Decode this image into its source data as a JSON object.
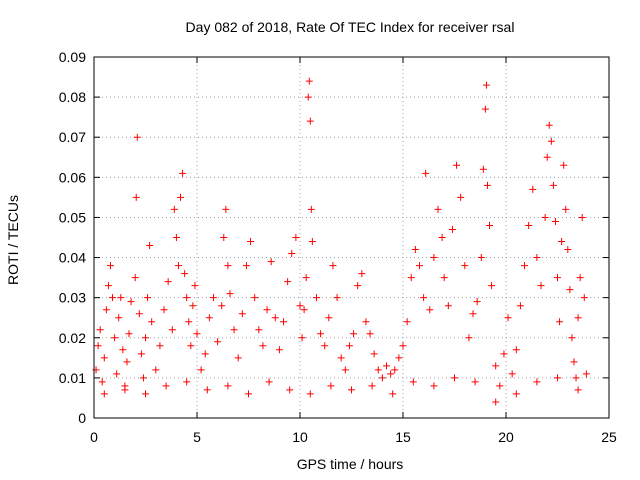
{
  "chart_data": {
    "type": "scatter",
    "title": "Day 082 of 2018, Rate Of TEC Index for receiver rsal",
    "xlabel": "GPS time / hours",
    "ylabel": "ROTI / TECUs",
    "xlim": [
      0,
      25
    ],
    "ylim": [
      0,
      0.09
    ],
    "x_ticks": [
      0,
      5,
      10,
      15,
      20,
      25
    ],
    "y_ticks": [
      0,
      0.01,
      0.02,
      0.03,
      0.04,
      0.05,
      0.06,
      0.07,
      0.08,
      0.09
    ],
    "x_tick_labels": [
      "0",
      "5",
      "10",
      "15",
      "20",
      "25"
    ],
    "y_tick_labels": [
      "0",
      "0.01",
      "0.02",
      "0.03",
      "0.04",
      "0.05",
      "0.06",
      "0.07",
      "0.08",
      "0.09"
    ],
    "grid": true,
    "marker": "plus",
    "color": "#ff0000",
    "series": [
      {
        "points": [
          [
            0.1,
            0.012
          ],
          [
            0.2,
            0.018
          ],
          [
            0.3,
            0.022
          ],
          [
            0.4,
            0.009
          ],
          [
            0.5,
            0.015
          ],
          [
            0.6,
            0.027
          ],
          [
            0.7,
            0.033
          ],
          [
            0.8,
            0.038
          ],
          [
            0.9,
            0.03
          ],
          [
            1.0,
            0.02
          ],
          [
            1.1,
            0.011
          ],
          [
            1.2,
            0.025
          ],
          [
            1.3,
            0.03
          ],
          [
            1.4,
            0.017
          ],
          [
            1.5,
            0.008
          ],
          [
            1.6,
            0.014
          ],
          [
            1.7,
            0.021
          ],
          [
            1.8,
            0.029
          ],
          [
            2.0,
            0.035
          ],
          [
            2.05,
            0.055
          ],
          [
            2.1,
            0.07
          ],
          [
            2.2,
            0.026
          ],
          [
            2.3,
            0.016
          ],
          [
            2.4,
            0.01
          ],
          [
            2.5,
            0.02
          ],
          [
            2.6,
            0.03
          ],
          [
            2.7,
            0.043
          ],
          [
            2.8,
            0.024
          ],
          [
            3.0,
            0.012
          ],
          [
            3.2,
            0.018
          ],
          [
            3.4,
            0.027
          ],
          [
            3.6,
            0.034
          ],
          [
            3.8,
            0.022
          ],
          [
            3.9,
            0.052
          ],
          [
            4.0,
            0.045
          ],
          [
            4.1,
            0.038
          ],
          [
            4.2,
            0.055
          ],
          [
            4.3,
            0.061
          ],
          [
            4.4,
            0.036
          ],
          [
            4.5,
            0.03
          ],
          [
            4.6,
            0.024
          ],
          [
            4.7,
            0.018
          ],
          [
            4.8,
            0.028
          ],
          [
            4.9,
            0.033
          ],
          [
            5.0,
            0.021
          ],
          [
            5.2,
            0.012
          ],
          [
            5.4,
            0.016
          ],
          [
            5.6,
            0.025
          ],
          [
            5.8,
            0.03
          ],
          [
            6.0,
            0.019
          ],
          [
            6.2,
            0.028
          ],
          [
            6.3,
            0.045
          ],
          [
            6.4,
            0.052
          ],
          [
            6.5,
            0.038
          ],
          [
            6.6,
            0.031
          ],
          [
            6.8,
            0.022
          ],
          [
            7.0,
            0.015
          ],
          [
            7.2,
            0.026
          ],
          [
            7.4,
            0.038
          ],
          [
            7.6,
            0.044
          ],
          [
            7.8,
            0.03
          ],
          [
            8.0,
            0.022
          ],
          [
            8.2,
            0.018
          ],
          [
            8.4,
            0.027
          ],
          [
            8.6,
            0.039
          ],
          [
            8.8,
            0.025
          ],
          [
            9.0,
            0.017
          ],
          [
            9.2,
            0.024
          ],
          [
            9.4,
            0.034
          ],
          [
            9.6,
            0.041
          ],
          [
            9.8,
            0.045
          ],
          [
            10.0,
            0.028
          ],
          [
            10.1,
            0.02
          ],
          [
            10.2,
            0.027
          ],
          [
            10.3,
            0.035
          ],
          [
            10.4,
            0.08
          ],
          [
            10.45,
            0.084
          ],
          [
            10.5,
            0.074
          ],
          [
            10.55,
            0.052
          ],
          [
            10.6,
            0.044
          ],
          [
            10.8,
            0.03
          ],
          [
            11.0,
            0.021
          ],
          [
            11.2,
            0.018
          ],
          [
            11.4,
            0.025
          ],
          [
            11.6,
            0.038
          ],
          [
            11.8,
            0.03
          ],
          [
            12.0,
            0.015
          ],
          [
            12.2,
            0.012
          ],
          [
            12.4,
            0.018
          ],
          [
            12.6,
            0.021
          ],
          [
            12.8,
            0.033
          ],
          [
            13.0,
            0.036
          ],
          [
            13.2,
            0.024
          ],
          [
            13.4,
            0.021
          ],
          [
            13.6,
            0.016
          ],
          [
            13.8,
            0.012
          ],
          [
            14.0,
            0.01
          ],
          [
            14.2,
            0.013
          ],
          [
            14.4,
            0.011
          ],
          [
            14.6,
            0.012
          ],
          [
            14.8,
            0.015
          ],
          [
            15.0,
            0.018
          ],
          [
            15.2,
            0.024
          ],
          [
            15.4,
            0.035
          ],
          [
            15.6,
            0.042
          ],
          [
            15.8,
            0.038
          ],
          [
            16.0,
            0.03
          ],
          [
            16.1,
            0.061
          ],
          [
            16.3,
            0.027
          ],
          [
            16.5,
            0.04
          ],
          [
            16.7,
            0.052
          ],
          [
            16.9,
            0.045
          ],
          [
            17.0,
            0.035
          ],
          [
            17.2,
            0.028
          ],
          [
            17.4,
            0.047
          ],
          [
            17.6,
            0.063
          ],
          [
            17.8,
            0.055
          ],
          [
            18.0,
            0.038
          ],
          [
            18.2,
            0.02
          ],
          [
            18.4,
            0.026
          ],
          [
            18.6,
            0.029
          ],
          [
            18.8,
            0.04
          ],
          [
            18.9,
            0.062
          ],
          [
            19.0,
            0.077
          ],
          [
            19.05,
            0.083
          ],
          [
            19.1,
            0.058
          ],
          [
            19.2,
            0.048
          ],
          [
            19.3,
            0.033
          ],
          [
            19.5,
            0.013
          ],
          [
            19.7,
            0.008
          ],
          [
            19.9,
            0.016
          ],
          [
            20.1,
            0.025
          ],
          [
            20.3,
            0.011
          ],
          [
            20.5,
            0.017
          ],
          [
            20.7,
            0.028
          ],
          [
            20.9,
            0.038
          ],
          [
            21.1,
            0.048
          ],
          [
            21.3,
            0.057
          ],
          [
            21.5,
            0.04
          ],
          [
            21.7,
            0.033
          ],
          [
            21.9,
            0.05
          ],
          [
            22.0,
            0.065
          ],
          [
            22.1,
            0.073
          ],
          [
            22.2,
            0.069
          ],
          [
            22.3,
            0.058
          ],
          [
            22.4,
            0.049
          ],
          [
            22.5,
            0.035
          ],
          [
            22.6,
            0.024
          ],
          [
            22.7,
            0.044
          ],
          [
            22.8,
            0.063
          ],
          [
            22.9,
            0.052
          ],
          [
            23.0,
            0.042
          ],
          [
            23.1,
            0.032
          ],
          [
            23.2,
            0.02
          ],
          [
            23.3,
            0.014
          ],
          [
            23.4,
            0.01
          ],
          [
            23.5,
            0.025
          ],
          [
            23.6,
            0.035
          ],
          [
            23.7,
            0.05
          ],
          [
            23.8,
            0.03
          ],
          [
            23.9,
            0.011
          ],
          [
            0.5,
            0.006
          ],
          [
            1.5,
            0.007
          ],
          [
            2.5,
            0.006
          ],
          [
            3.5,
            0.008
          ],
          [
            4.5,
            0.009
          ],
          [
            5.5,
            0.007
          ],
          [
            6.5,
            0.008
          ],
          [
            7.5,
            0.006
          ],
          [
            8.5,
            0.009
          ],
          [
            9.5,
            0.007
          ],
          [
            10.5,
            0.006
          ],
          [
            11.5,
            0.008
          ],
          [
            12.5,
            0.007
          ],
          [
            13.5,
            0.008
          ],
          [
            14.5,
            0.006
          ],
          [
            15.5,
            0.009
          ],
          [
            16.5,
            0.008
          ],
          [
            17.5,
            0.01
          ],
          [
            18.5,
            0.009
          ],
          [
            19.5,
            0.004
          ],
          [
            20.5,
            0.006
          ],
          [
            21.5,
            0.009
          ],
          [
            22.5,
            0.01
          ],
          [
            23.5,
            0.007
          ]
        ]
      }
    ]
  }
}
